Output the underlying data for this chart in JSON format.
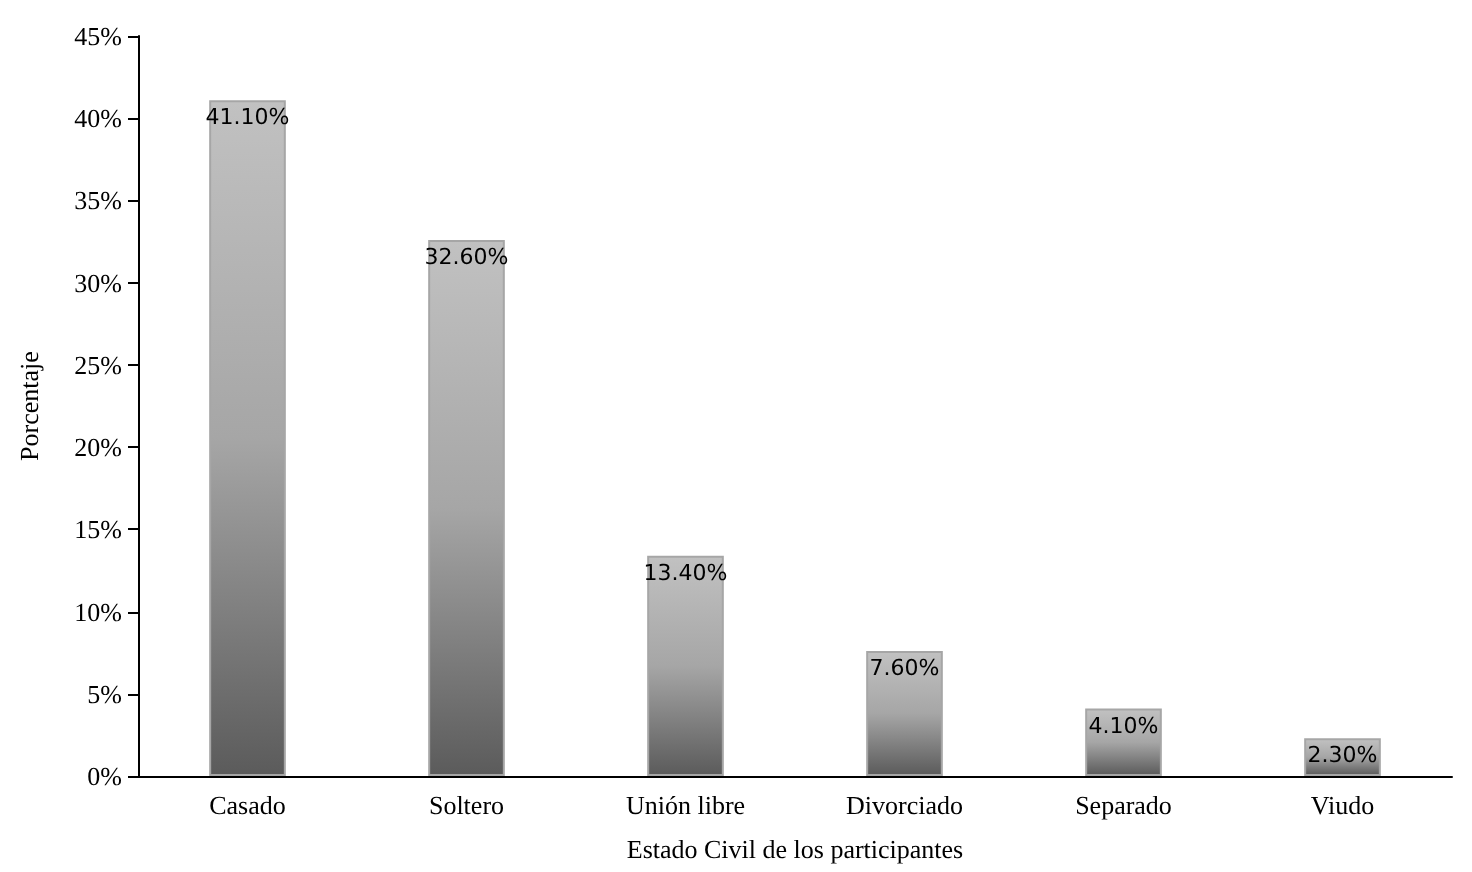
{
  "chart_data": {
    "type": "bar",
    "xlabel": "Estado Civil de los participantes",
    "ylabel": "Porcentaje",
    "categories": [
      "Casado",
      "Soltero",
      "Unión libre",
      "Divorciado",
      "Separado",
      "Viudo"
    ],
    "values": [
      41.1,
      32.6,
      13.4,
      7.6,
      4.1,
      2.3
    ],
    "value_labels": [
      "41.10%",
      "32.60%",
      "13.40%",
      "7.60%",
      "4.10%",
      "2.30%"
    ],
    "color": "#a6a6a6",
    "ylim": [
      0,
      45
    ],
    "yticks": [
      {
        "value": 0,
        "label": "0%"
      },
      {
        "value": 5,
        "label": "5%"
      },
      {
        "value": 10,
        "label": "10%"
      },
      {
        "value": 15,
        "label": "15%"
      },
      {
        "value": 20,
        "label": "20%"
      },
      {
        "value": 25,
        "label": "25%"
      },
      {
        "value": 30,
        "label": "30%"
      },
      {
        "value": 35,
        "label": "35%"
      },
      {
        "value": 40,
        "label": "40%"
      },
      {
        "value": 45,
        "label": "45%"
      }
    ],
    "grid": false
  }
}
